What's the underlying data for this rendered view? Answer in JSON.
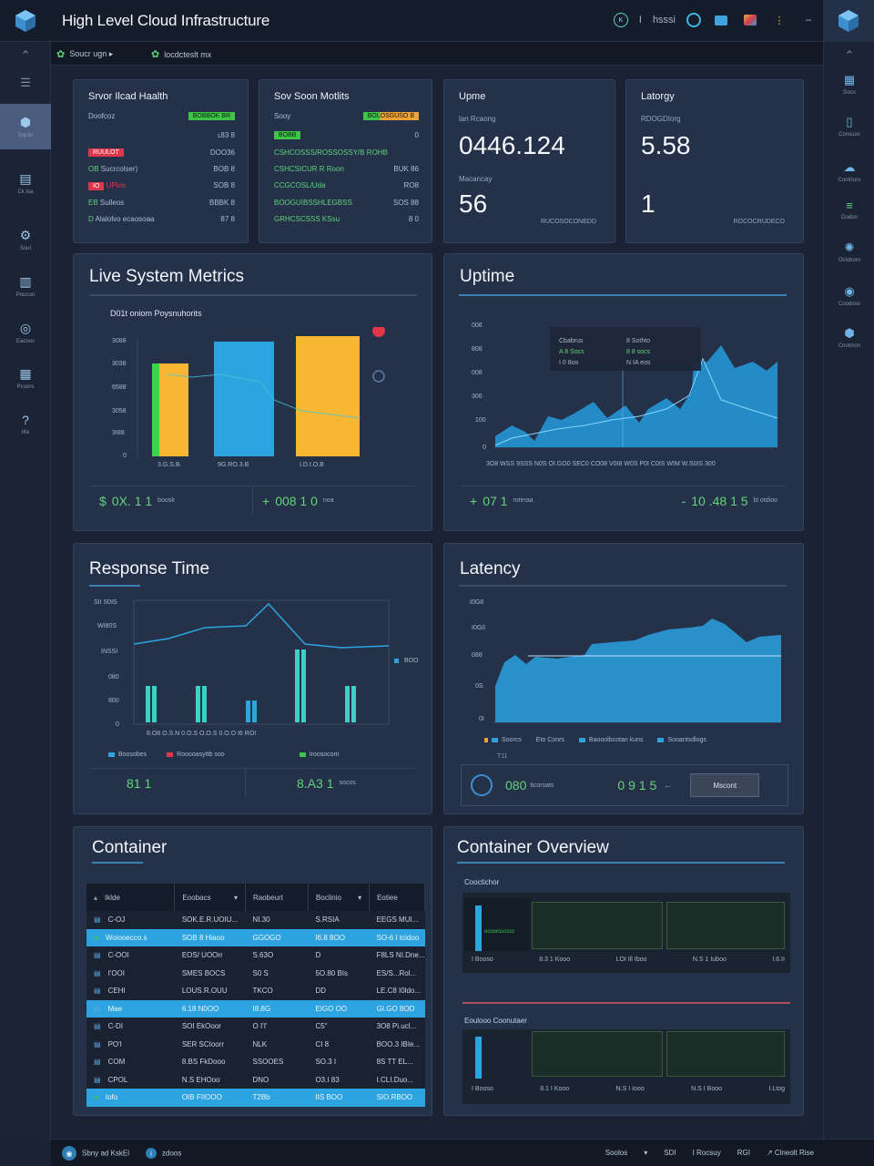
{
  "app": {
    "title": "High Level Cloud Infrastructure"
  },
  "topbar": {
    "icon_labels": [
      "K",
      "I",
      "hsssi"
    ]
  },
  "subbar": {
    "items": [
      "Soucr ugn ▸",
      "locdcteslt mx"
    ]
  },
  "sidebar_left": {
    "items": [
      {
        "icon": "cube-icon",
        "label": "Squiio"
      },
      {
        "icon": "document-icon",
        "label": "Ck ioa"
      },
      {
        "icon": "gear-icon",
        "label": "Sout"
      },
      {
        "icon": "bar-chart-icon",
        "label": "Poucun"
      },
      {
        "icon": "target-icon",
        "label": "Eacoos"
      },
      {
        "icon": "grid-icon",
        "label": "Pcuors"
      },
      {
        "icon": "help-icon",
        "label": "IKk"
      }
    ]
  },
  "sidebar_right": {
    "items": [
      {
        "icon": "server-icon",
        "label": "Docs"
      },
      {
        "icon": "file-icon",
        "label": "Consuoc"
      },
      {
        "icon": "cloud-icon",
        "label": "Contrtoro"
      },
      {
        "icon": "stack-icon",
        "label": "Dodon"
      },
      {
        "icon": "settings-icon",
        "label": "Ocloborn"
      },
      {
        "icon": "ring-icon",
        "label": "Coodoos"
      },
      {
        "icon": "container-icon",
        "label": "Cootmon"
      }
    ]
  },
  "cards": {
    "server_health": {
      "title": "Srvor Ilcad Haalth",
      "header_label": "Doofcoz",
      "header_tag": "BOBBOK  BR",
      "rows": [
        {
          "label": "",
          "value": "ʟ83 8"
        },
        {
          "label": "Ruuuor",
          "tag": "RUULOT",
          "value": "DOO36"
        },
        {
          "label": "Sucrcolser)",
          "prefix": "OB",
          "value": "BOB 8"
        },
        {
          "label": "UPlos",
          "prefix": "IO",
          "value": "SOB 8"
        },
        {
          "label": "Sulleos",
          "prefix": "EB",
          "value": "BBBK 8"
        },
        {
          "label": "Alalolvo ecaosoaa",
          "prefix": "D",
          "value": "87 8"
        }
      ]
    },
    "server_metrics": {
      "title": "Sov Soon Motlits",
      "header_label": "Sooy",
      "header_tag": "BOLOSGUSO B",
      "rows": [
        {
          "label": "",
          "tag": "BOBB",
          "value": "0"
        },
        {
          "label": "CSHCOSSS/ROSSOSSY/B ROHB",
          "value": ""
        },
        {
          "label": "CSHCSICUR R Roon",
          "value": "BUK 86"
        },
        {
          "label": "CCGCOSL/Uda",
          "value": "RO8"
        },
        {
          "label": "BOOGUIBSSHLEGBSS",
          "value": "SOS 88"
        },
        {
          "label": "GRHCSCSSS KSsu",
          "value": "8 0"
        }
      ]
    },
    "uptime": {
      "title": "Upme",
      "sub1": "lan Rcaong",
      "value1": "0446.124",
      "sub2": "Macancay",
      "value2": "56",
      "corner": "RUCOSOCONEDD"
    },
    "latency": {
      "title": "Latorgy",
      "sub1": "RDOGDIorg",
      "value1": "5.58",
      "value2": "1",
      "corner": "ROCOCRUDECO"
    }
  },
  "live_metrics": {
    "title": "Live System Metrics",
    "chart_caption": "D01t oniom Poysnuhorits",
    "footer": [
      {
        "prefix": "$",
        "value": "0X. 1 1",
        "small": "boosk"
      },
      {
        "prefix": "+",
        "value": "008 1 0",
        "small": "noa"
      }
    ]
  },
  "uptime_panel": {
    "title": "Uptime",
    "tooltip": {
      "col1": [
        "Cbabrus",
        "A 8 Socs",
        "I 0 8oo"
      ],
      "col2": [
        "8 Sothto",
        "8 8 socs",
        "N IA eos"
      ]
    },
    "footer": [
      {
        "prefix": "+",
        "value": "07 1",
        "small": "roteraa"
      },
      {
        "prefix": "-",
        "value": "10 .48 1 5",
        "small": "bl otdioo"
      }
    ]
  },
  "response_time": {
    "title": "Response Time",
    "legend": [
      "Boosobes",
      "Rooooasyttb soo",
      "Iroosocom"
    ],
    "side_label": "BOO",
    "footer": [
      {
        "value": "81 1",
        "small": ""
      },
      {
        "value": "8.A3 1",
        "small": "socos"
      }
    ]
  },
  "latency_panel": {
    "title": "Latency",
    "legend": [
      "Soorcs",
      "Eto Conrs",
      "Baooolbcotan kuns",
      "Sooantsdlogs"
    ],
    "under_legend": "T11",
    "footer": [
      {
        "value": "080",
        "small": "ticorsats"
      },
      {
        "value": "0 9 1 5",
        "small": ""
      }
    ],
    "button": "Mscont"
  },
  "container_table": {
    "title": "Container",
    "columns": [
      "Iklde",
      "Eoobacs",
      "Raobeurt",
      "Boclinio",
      "Eotiee"
    ],
    "rows": [
      {
        "name": "C-OJ",
        "c2": "SOK.E.R.UOIU...",
        "c3": "NI.30",
        "c4": "S.RSIA",
        "c5": "EEGS MUI...",
        "hl": false,
        "icon": "doc"
      },
      {
        "name": "Woiooecco.s",
        "c2": "SOB 8 Hiaoo",
        "c3": "GGOGO",
        "c4": "I6.8 8OO",
        "c5": "SO-6 I tcidoo",
        "hl": true,
        "icon": "check"
      },
      {
        "name": "C-OOI",
        "c2": "EOS/ UOOrr",
        "c3": "S.63O",
        "c4": "D",
        "c5": "F8LS NI.Dne...",
        "hl": false,
        "icon": "doc"
      },
      {
        "name": "I'OOI",
        "c2": "SMES BOCS",
        "c3": "S0 S",
        "c4": "5O.80 BIs",
        "c5": "ES/S...Rol...",
        "hl": false,
        "icon": "doc"
      },
      {
        "name": "CEHI",
        "c2": "LOUS.R.OUU",
        "c3": "TKCO",
        "c4": "DD",
        "c5": "LE.C8 I0ldo...",
        "hl": false,
        "icon": "doc"
      },
      {
        "name": "Mae",
        "c2": "6.18 N0OO",
        "c3": "I8.8G",
        "c4": "EIGO OO",
        "c5": "GI.GO 8OD",
        "hl": true,
        "icon": "doc"
      },
      {
        "name": "C-DI",
        "c2": "SOI EkOoor",
        "c3": "O I'I'",
        "c4": "C5\"",
        "c5": "3O8 Pi.ucl...",
        "hl": false,
        "icon": "doc"
      },
      {
        "name": "PO'I",
        "c2": "SER SCIoorr",
        "c3": "NLK",
        "c4": "CI 8",
        "c5": "BOO.3 IBIe...",
        "hl": false,
        "icon": "doc"
      },
      {
        "name": "COM",
        "c2": "8.BS FkDooo",
        "c3": "SSOOES",
        "c4": "SO.3 I",
        "c5": "8S TT EL...",
        "hl": false,
        "icon": "doc"
      },
      {
        "name": "CPOL",
        "c2": "N.S EHOoo",
        "c3": "DNO",
        "c4": "O3.I 83",
        "c5": "I.CLI.Duo...",
        "hl": false,
        "icon": "doc"
      },
      {
        "name": "Iofo",
        "c2": "OIB FIIOOO",
        "c3": "T2Bb",
        "c4": "IIS BOO",
        "c5": "SIO.RBOO",
        "hl": true,
        "icon": "check"
      }
    ]
  },
  "container_overview": {
    "title": "Container Overview",
    "section1": "Cooctichor",
    "section1_note": "ocoorcucscc",
    "foot1": [
      "I Booso",
      "8.3 1 Kooo",
      "LOI Ill Iboo",
      "N.S 1 Iuboo",
      "I.6.II"
    ],
    "section2": "Eoulooo Coonutaer",
    "foot2": [
      "I Booso",
      "8.1 I Kooo",
      "N.S I Iooo",
      "N.S I Booo",
      "I.Ltog"
    ]
  },
  "statusbar": {
    "left": [
      "Sbny ad KskEl",
      "zdoos"
    ],
    "right": [
      "Soolos",
      "▾",
      "SDI",
      "I Rocsuy",
      "RGI",
      "↗ Clneolt Rise"
    ]
  },
  "colors": {
    "accent": "#2da4e0",
    "green": "#63d47b",
    "yellow": "#f7b733",
    "red": "#e0364a",
    "panel": "#243149"
  }
}
